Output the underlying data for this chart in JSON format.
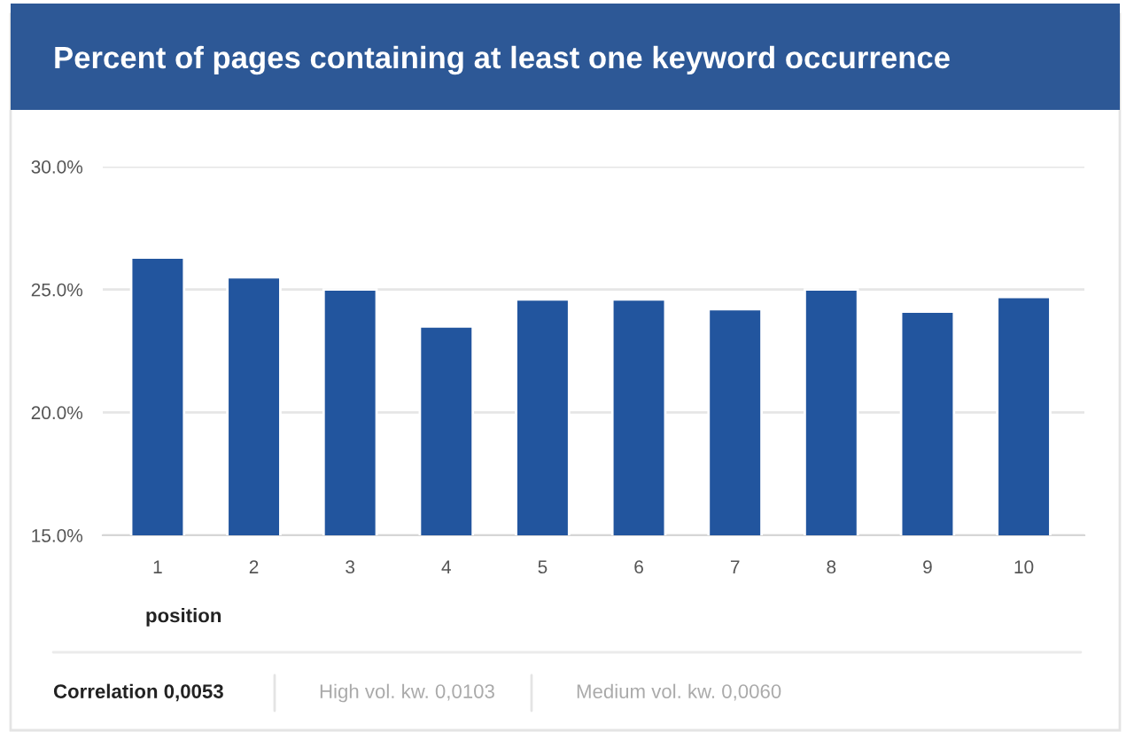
{
  "chart_data": {
    "type": "bar",
    "title": "Percent of pages containing at least one keyword occurrence",
    "xlabel": "position",
    "categories": [
      "1",
      "2",
      "3",
      "4",
      "5",
      "6",
      "7",
      "8",
      "9",
      "10"
    ],
    "values": [
      26.3,
      25.5,
      25.0,
      23.5,
      24.6,
      24.6,
      24.2,
      25.0,
      24.1,
      24.7
    ],
    "color": "#22559e",
    "ylim": [
      15,
      30
    ],
    "yticks": [
      {
        "value": 15,
        "label": "15.0%"
      },
      {
        "value": 20,
        "label": "20.0%"
      },
      {
        "value": 25,
        "label": "25.0%"
      },
      {
        "value": 30,
        "label": "30.0%"
      }
    ],
    "grid": "y",
    "annotations": [
      "Correlation 0,0053",
      "High vol. kw. 0,0103",
      "Medium vol. kw. 0,0060"
    ]
  }
}
